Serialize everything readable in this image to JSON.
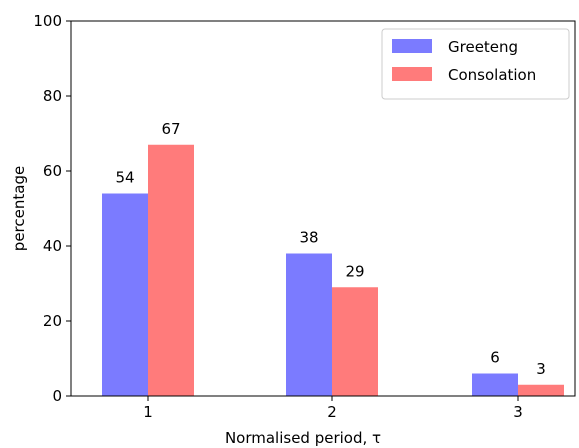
{
  "chart_data": {
    "type": "bar",
    "categories": [
      "1",
      "2",
      "3"
    ],
    "series": [
      {
        "name": "Greeteng",
        "values": [
          54,
          38,
          6
        ],
        "color": "#7b7bff"
      },
      {
        "name": "Consolation",
        "values": [
          67,
          29,
          3
        ],
        "color": "#ff7b7b"
      }
    ],
    "data_labels": [
      [
        "54",
        "38",
        "6"
      ],
      [
        "67",
        "29",
        "3"
      ]
    ],
    "xlabel": "Normalised period, τ",
    "ylabel": "percentage",
    "ylim": [
      0,
      100
    ],
    "yticks": [
      0,
      20,
      40,
      60,
      80,
      100
    ],
    "grid": false,
    "legend_position": "top-right"
  }
}
